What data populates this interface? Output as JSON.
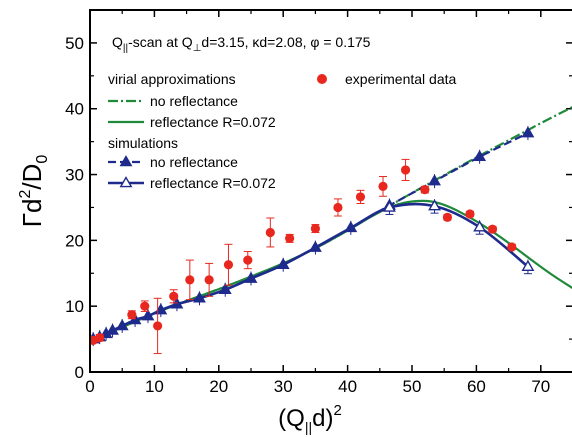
{
  "chart_data": {
    "type": "scatter",
    "annotation": {
      "q": "Q",
      "sub1": "||",
      "mid": "-scan at Q",
      "sub2": "⊥",
      "rest": "d=3.15, κd=2.08, φ = 0.175"
    },
    "xlabel": {
      "open": "(Q",
      "sub": "||",
      "mid": "d)",
      "sup": "2"
    },
    "ylabel": {
      "main": "Γd",
      "sup": "2",
      "slash": "/D",
      "sub": "0"
    },
    "xlim": [
      0,
      75
    ],
    "ylim": [
      0,
      55
    ],
    "xticks": [
      0,
      10,
      20,
      30,
      40,
      50,
      60,
      70
    ],
    "yticks": [
      0,
      10,
      20,
      30,
      40,
      50
    ],
    "legend": {
      "virial": "virial approximations",
      "experimental": "experimental data",
      "simulations": "simulations",
      "no_refl_a": "no reflectance",
      "refl_a": "reflectance R=0.072",
      "no_refl_s": "no reflectance",
      "refl_s": "reflectance R=0.072"
    },
    "colors": {
      "experimental": "#e8281e",
      "virial": "#1f8a3a",
      "simulation": "#1e2a8c"
    },
    "series": [
      {
        "name": "experimental data",
        "points": [
          [
            0.5,
            4.8,
            0.4
          ],
          [
            1.5,
            5.2,
            0.5
          ],
          [
            6.5,
            8.7,
            0.6
          ],
          [
            8.5,
            10.0,
            0.8
          ],
          [
            10.5,
            7.0,
            4.2
          ],
          [
            13.0,
            11.5,
            1.0
          ],
          [
            15.5,
            14.0,
            3.0
          ],
          [
            18.5,
            14.0,
            2.5
          ],
          [
            21.5,
            16.3,
            3.1
          ],
          [
            24.5,
            17.0,
            1.3
          ],
          [
            28.0,
            21.2,
            2.2
          ],
          [
            31.0,
            20.3,
            0.6
          ],
          [
            35.0,
            21.8,
            0.6
          ],
          [
            38.5,
            25.0,
            1.3
          ],
          [
            42.0,
            26.6,
            1.0
          ],
          [
            45.5,
            28.2,
            1.5
          ],
          [
            49.0,
            30.7,
            1.6
          ],
          [
            52.0,
            27.7,
            0.5
          ],
          [
            55.5,
            23.5,
            0.4
          ],
          [
            59.0,
            24.0,
            0.4
          ],
          [
            62.5,
            21.7,
            0.4
          ],
          [
            65.5,
            19.0,
            0.4
          ]
        ]
      },
      {
        "name": "simulation no reflectance",
        "points": [
          [
            0.5,
            5.0
          ],
          [
            1.5,
            5.3
          ],
          [
            2.5,
            5.8
          ],
          [
            3.5,
            6.3
          ],
          [
            5,
            7.0
          ],
          [
            7,
            7.9
          ],
          [
            9,
            8.5
          ],
          [
            11,
            9.4
          ],
          [
            13.5,
            10.3
          ],
          [
            17,
            11.2
          ],
          [
            21,
            12.5
          ],
          [
            25,
            14.2
          ],
          [
            30,
            16.3
          ],
          [
            35,
            18.9
          ],
          [
            40.5,
            21.9
          ],
          [
            46.5,
            25.3
          ],
          [
            53.5,
            29.0
          ],
          [
            60.5,
            32.7
          ],
          [
            68,
            36.3
          ]
        ]
      },
      {
        "name": "simulation reflectance R=0.072",
        "points": [
          [
            0.5,
            5.0
          ],
          [
            1.5,
            5.3
          ],
          [
            2.5,
            5.8
          ],
          [
            3.5,
            6.3
          ],
          [
            5,
            7.0
          ],
          [
            7,
            7.9
          ],
          [
            9,
            8.5
          ],
          [
            11,
            9.4
          ],
          [
            13.5,
            10.3
          ],
          [
            17,
            11.2
          ],
          [
            21,
            12.5
          ],
          [
            25,
            14.2
          ],
          [
            30,
            16.3
          ],
          [
            35,
            18.9
          ],
          [
            40.5,
            21.9
          ],
          [
            46.5,
            25.0
          ],
          [
            53.5,
            25.2
          ],
          [
            60.5,
            22.0
          ],
          [
            68,
            16.0
          ]
        ]
      }
    ],
    "curves": [
      {
        "name": "virial no reflectance",
        "points": [
          [
            0,
            4.6
          ],
          [
            5,
            6.8
          ],
          [
            10,
            8.9
          ],
          [
            15,
            10.8
          ],
          [
            20,
            12.6
          ],
          [
            25,
            14.5
          ],
          [
            30,
            16.5
          ],
          [
            35,
            18.8
          ],
          [
            40,
            21.5
          ],
          [
            45,
            24.4
          ],
          [
            50,
            27.2
          ],
          [
            55,
            29.9
          ],
          [
            60,
            32.6
          ],
          [
            65,
            35.2
          ],
          [
            70,
            37.8
          ],
          [
            75,
            40.3
          ]
        ]
      },
      {
        "name": "virial reflectance R=0.072",
        "points": [
          [
            0,
            4.6
          ],
          [
            5,
            6.8
          ],
          [
            10,
            8.9
          ],
          [
            15,
            10.8
          ],
          [
            20,
            12.6
          ],
          [
            25,
            14.5
          ],
          [
            30,
            16.5
          ],
          [
            35,
            18.8
          ],
          [
            40,
            21.5
          ],
          [
            44,
            23.8
          ],
          [
            47,
            25.2
          ],
          [
            50,
            25.9
          ],
          [
            53,
            25.9
          ],
          [
            56,
            25.0
          ],
          [
            60,
            22.9
          ],
          [
            63,
            21.0
          ],
          [
            66,
            18.9
          ],
          [
            69,
            16.7
          ],
          [
            72,
            14.6
          ],
          [
            75,
            12.7
          ]
        ]
      }
    ]
  }
}
